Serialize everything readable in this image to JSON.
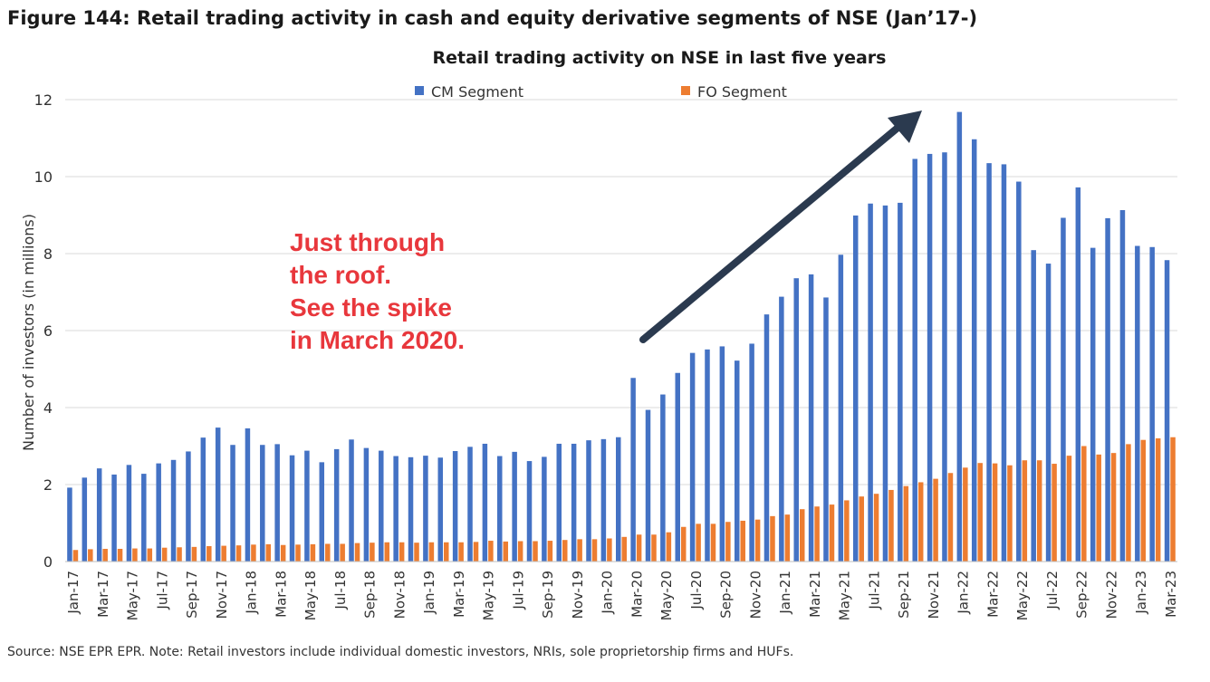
{
  "figure_title": "Figure 144: Retail trading activity in cash and equity derivative segments of NSE (Jan’17-)",
  "source_note": "Source: NSE EPR EPR. Note: Retail investors include individual domestic investors, NRIs, sole proprietorship firms and HUFs.",
  "annotation": {
    "lines": [
      "Just through",
      "the roof.",
      "See the spike",
      "in March 2020."
    ],
    "color": "#e8373c"
  },
  "arrow_color": "#2b3a4f",
  "chart_data": {
    "type": "bar",
    "title": "Retail trading activity on NSE in last five years",
    "xlabel": "",
    "ylabel": "Number of investors (in millions)",
    "ylim": [
      0,
      12
    ],
    "yticks": [
      0,
      2,
      4,
      6,
      8,
      10,
      12
    ],
    "grid": true,
    "legend_position": "top",
    "x_tick_labels_every": 2,
    "categories": [
      "Jan-17",
      "Feb-17",
      "Mar-17",
      "Apr-17",
      "May-17",
      "Jun-17",
      "Jul-17",
      "Aug-17",
      "Sep-17",
      "Oct-17",
      "Nov-17",
      "Dec-17",
      "Jan-18",
      "Feb-18",
      "Mar-18",
      "Apr-18",
      "May-18",
      "Jun-18",
      "Jul-18",
      "Aug-18",
      "Sep-18",
      "Oct-18",
      "Nov-18",
      "Dec-18",
      "Jan-19",
      "Feb-19",
      "Mar-19",
      "Apr-19",
      "May-19",
      "Jun-19",
      "Jul-19",
      "Aug-19",
      "Sep-19",
      "Oct-19",
      "Nov-19",
      "Dec-19",
      "Jan-20",
      "Feb-20",
      "Mar-20",
      "Apr-20",
      "May-20",
      "Jun-20",
      "Jul-20",
      "Aug-20",
      "Sep-20",
      "Oct-20",
      "Nov-20",
      "Dec-20",
      "Jan-21",
      "Feb-21",
      "Mar-21",
      "Apr-21",
      "May-21",
      "Jun-21",
      "Jul-21",
      "Aug-21",
      "Sep-21",
      "Oct-21",
      "Nov-21",
      "Dec-21",
      "Jan-22",
      "Feb-22",
      "Mar-22",
      "Apr-22",
      "May-22",
      "Jun-22",
      "Jul-22",
      "Aug-22",
      "Sep-22",
      "Oct-22",
      "Nov-22",
      "Dec-22",
      "Jan-23",
      "Feb-23",
      "Mar-23"
    ],
    "series": [
      {
        "name": "CM Segment",
        "color": "#4472c4",
        "values": [
          1.92,
          2.18,
          2.42,
          2.26,
          2.51,
          2.28,
          2.55,
          2.64,
          2.86,
          3.22,
          3.48,
          3.03,
          3.46,
          3.03,
          3.05,
          2.76,
          2.88,
          2.58,
          2.92,
          3.17,
          2.95,
          2.88,
          2.74,
          2.71,
          2.75,
          2.7,
          2.87,
          2.98,
          3.06,
          2.74,
          2.85,
          2.61,
          2.72,
          3.06,
          3.06,
          3.15,
          3.18,
          3.23,
          4.77,
          3.94,
          4.34,
          4.9,
          5.42,
          5.51,
          5.59,
          5.22,
          5.66,
          6.42,
          6.88,
          7.36,
          7.46,
          6.86,
          7.97,
          8.99,
          9.3,
          9.25,
          9.32,
          10.46,
          10.59,
          10.63,
          11.68,
          10.97,
          10.35,
          10.32,
          9.87,
          8.09,
          7.74,
          8.93,
          9.72,
          8.15,
          8.92,
          9.13,
          8.2,
          8.17,
          7.83
        ]
      },
      {
        "name": "FO Segment",
        "color": "#ed7d31",
        "values": [
          0.3,
          0.32,
          0.33,
          0.33,
          0.34,
          0.34,
          0.36,
          0.37,
          0.38,
          0.4,
          0.41,
          0.42,
          0.44,
          0.45,
          0.43,
          0.44,
          0.45,
          0.46,
          0.46,
          0.48,
          0.49,
          0.5,
          0.5,
          0.49,
          0.5,
          0.5,
          0.5,
          0.51,
          0.54,
          0.52,
          0.53,
          0.53,
          0.54,
          0.56,
          0.58,
          0.58,
          0.6,
          0.64,
          0.7,
          0.7,
          0.76,
          0.9,
          0.98,
          0.98,
          1.03,
          1.06,
          1.09,
          1.18,
          1.22,
          1.36,
          1.43,
          1.48,
          1.59,
          1.69,
          1.76,
          1.86,
          1.96,
          2.06,
          2.15,
          2.3,
          2.44,
          2.56,
          2.55,
          2.5,
          2.63,
          2.63,
          2.54,
          2.75,
          3.0,
          2.78,
          2.82,
          3.05,
          3.16,
          3.2,
          3.23
        ]
      }
    ]
  }
}
